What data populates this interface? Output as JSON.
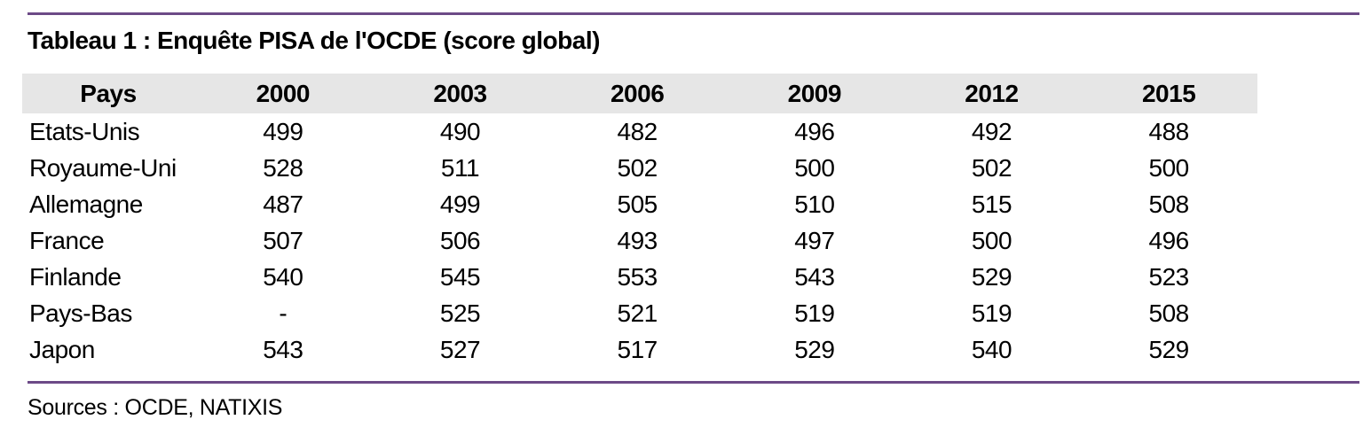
{
  "colors": {
    "accent": "#6C4A87",
    "header_bg": "#E6E6E6",
    "text": "#000000",
    "background": "#FFFFFF"
  },
  "chart_data": {
    "type": "table",
    "title": "Tableau 1 : Enquête PISA de l'OCDE (score global)",
    "columns": [
      "Pays",
      "2000",
      "2003",
      "2006",
      "2009",
      "2012",
      "2015"
    ],
    "rows": [
      {
        "country": "Etats-Unis",
        "values": [
          "499",
          "490",
          "482",
          "496",
          "492",
          "488"
        ]
      },
      {
        "country": "Royaume-Uni",
        "values": [
          "528",
          "511",
          "502",
          "500",
          "502",
          "500"
        ]
      },
      {
        "country": "Allemagne",
        "values": [
          "487",
          "499",
          "505",
          "510",
          "515",
          "508"
        ]
      },
      {
        "country": "France",
        "values": [
          "507",
          "506",
          "493",
          "497",
          "500",
          "496"
        ]
      },
      {
        "country": "Finlande",
        "values": [
          "540",
          "545",
          "553",
          "543",
          "529",
          "523"
        ]
      },
      {
        "country": "Pays-Bas",
        "values": [
          "-",
          "525",
          "521",
          "519",
          "519",
          "508"
        ]
      },
      {
        "country": "Japon",
        "values": [
          "543",
          "527",
          "517",
          "529",
          "540",
          "529"
        ]
      }
    ],
    "source_note": "Sources : OCDE, NATIXIS",
    "layout": {
      "grid": "off",
      "header_band": "gray",
      "rules": "purple horizontal rules above title and below table"
    }
  }
}
